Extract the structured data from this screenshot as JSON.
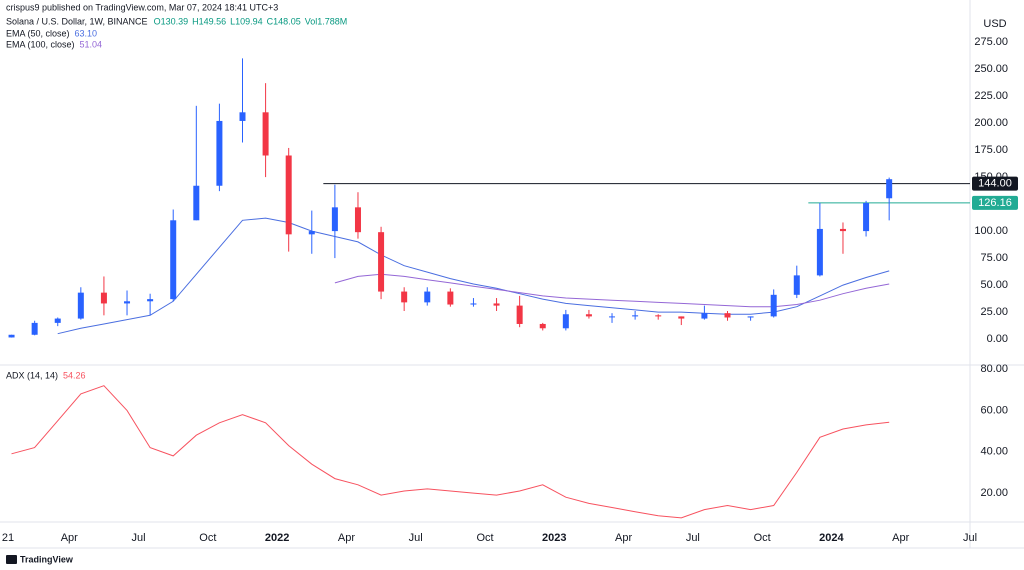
{
  "header": {
    "publisher": "crispus9 published on TradingView.com, Mar 07, 2024 18:41 UTC+3",
    "brand": "TradingView"
  },
  "chart_data": [
    {
      "type": "candlestick",
      "symbol": "Solana / U.S. Dollar, 1W, BINANCE",
      "ohlc_labels": [
        "O130.39",
        "H149.56",
        "L109.94",
        "C148.05",
        "Vol1.788M"
      ],
      "axis_title": "USD",
      "x": [
        "2021-01",
        "2021-02",
        "2021-03",
        "2021-04",
        "2021-05",
        "2021-06",
        "2021-07",
        "2021-08",
        "2021-09",
        "2021-10",
        "2021-11",
        "2021-12",
        "2022-01",
        "2022-02",
        "2022-03",
        "2022-04",
        "2022-05",
        "2022-06",
        "2022-07",
        "2022-08",
        "2022-09",
        "2022-10",
        "2022-11",
        "2022-12",
        "2023-01",
        "2023-02",
        "2023-03",
        "2023-04",
        "2023-05",
        "2023-06",
        "2023-07",
        "2023-08",
        "2023-09",
        "2023-10",
        "2023-11",
        "2023-12",
        "2024-01",
        "2024-02",
        "2024-03"
      ],
      "open": [
        1.5,
        4,
        15,
        19,
        43,
        33,
        35,
        37,
        110,
        142,
        202,
        210,
        170,
        97,
        100,
        122,
        99,
        44,
        34,
        44,
        32,
        33,
        31,
        14,
        10,
        23,
        21,
        21,
        22,
        21,
        19,
        24,
        20,
        21,
        41,
        59,
        102,
        100,
        130.39
      ],
      "high": [
        4,
        17,
        20,
        48,
        58,
        45,
        42,
        120,
        216,
        218,
        260,
        237,
        177,
        119,
        143,
        136,
        104,
        48,
        48,
        47,
        38,
        38,
        40,
        15,
        27,
        27,
        24,
        26,
        23,
        21,
        31,
        26,
        21,
        46,
        68,
        126,
        108,
        128,
        149.56
      ],
      "low": [
        1.4,
        3.5,
        12,
        18,
        22,
        22,
        22,
        35,
        110,
        137,
        182,
        150,
        81,
        79,
        75,
        93,
        37,
        26,
        31,
        30,
        30,
        26,
        11,
        8,
        8,
        19,
        15,
        18,
        18,
        13,
        18,
        17,
        17,
        20,
        38,
        58,
        79,
        95,
        109.94
      ],
      "close": [
        4,
        15,
        19,
        43,
        33,
        35,
        37,
        110,
        142,
        202,
        210,
        170,
        97,
        100,
        122,
        99,
        44,
        34,
        44,
        32,
        33,
        31,
        14,
        10,
        23,
        21,
        21,
        22,
        21,
        19,
        24,
        20,
        21,
        41,
        59,
        102,
        100,
        126,
        148.05
      ],
      "up_color": "#2962ff",
      "down_color": "#f23645",
      "series": [
        {
          "name": "EMA (50, close)",
          "last_label": "63.10",
          "color": "#4a6ee0",
          "values": [
            null,
            null,
            5,
            10,
            14,
            18,
            22,
            35,
            60,
            85,
            110,
            112,
            108,
            100,
            95,
            90,
            78,
            68,
            62,
            56,
            51,
            47,
            42,
            37,
            33,
            31,
            29,
            27,
            25,
            25,
            24,
            23,
            23,
            25,
            30,
            40,
            50,
            57,
            63.1
          ]
        },
        {
          "name": "EMA (100, close)",
          "last_label": "51.04",
          "color": "#9467d6",
          "values": [
            null,
            null,
            null,
            null,
            null,
            null,
            null,
            null,
            null,
            null,
            null,
            null,
            null,
            null,
            52,
            58,
            60,
            58,
            55,
            52,
            49,
            46,
            43,
            40,
            38,
            37,
            36,
            35,
            34,
            33,
            32,
            31,
            30,
            30,
            32,
            36,
            42,
            47,
            51.04
          ]
        }
      ],
      "levels": [
        {
          "value": 144,
          "label": "144.00",
          "from": "2022-03",
          "color": "#131722"
        },
        {
          "value": 126.16,
          "label": "126.16",
          "from": "2023-12",
          "color": "#22ab94"
        }
      ],
      "xlim": [
        "2021-01",
        "2024-07"
      ],
      "ylim": [
        -24,
        314
      ],
      "yticks": [
        {
          "value": 0,
          "label": "0.00"
        },
        {
          "value": 25,
          "label": "25.00"
        },
        {
          "value": 50,
          "label": "50.00"
        },
        {
          "value": 75,
          "label": "75.00"
        },
        {
          "value": 100,
          "label": "100.00"
        },
        {
          "value": 125,
          "label": "125.00"
        },
        {
          "value": 150,
          "label": "150.00"
        },
        {
          "value": 175,
          "label": "175.00"
        },
        {
          "value": 200,
          "label": "200.00"
        },
        {
          "value": 225,
          "label": "225.00"
        },
        {
          "value": 250,
          "label": "250.00"
        },
        {
          "value": 275,
          "label": "275.00"
        }
      ]
    },
    {
      "type": "line",
      "series": [
        {
          "name": "ADX (14, 14)",
          "last_label": "54.26",
          "color": "#f7525f",
          "values": [
            39,
            42,
            55,
            68,
            72,
            60,
            42,
            38,
            48,
            54,
            58,
            54,
            43,
            34,
            27,
            24,
            19,
            21,
            22,
            21,
            20,
            19,
            21,
            24,
            18,
            15,
            13,
            11,
            9,
            8,
            12,
            14,
            12,
            14,
            30,
            47,
            51,
            53,
            54.26
          ]
        }
      ],
      "ylim": [
        6,
        82
      ],
      "yticks": [
        {
          "value": 20,
          "label": "20.00"
        },
        {
          "value": 40,
          "label": "40.00"
        },
        {
          "value": 60,
          "label": "60.00"
        },
        {
          "value": 80,
          "label": "80.00"
        }
      ],
      "xticks": [
        {
          "value": "2021-01",
          "label": "21"
        },
        {
          "value": "2021-04",
          "label": "Apr"
        },
        {
          "value": "2021-07",
          "label": "Jul"
        },
        {
          "value": "2021-10",
          "label": "Oct"
        },
        {
          "value": "2022-01",
          "label": "2022"
        },
        {
          "value": "2022-04",
          "label": "Apr"
        },
        {
          "value": "2022-07",
          "label": "Jul"
        },
        {
          "value": "2022-10",
          "label": "Oct"
        },
        {
          "value": "2023-01",
          "label": "2023"
        },
        {
          "value": "2023-04",
          "label": "Apr"
        },
        {
          "value": "2023-07",
          "label": "Jul"
        },
        {
          "value": "2023-10",
          "label": "Oct"
        },
        {
          "value": "2024-01",
          "label": "2024"
        },
        {
          "value": "2024-04",
          "label": "Apr"
        },
        {
          "value": "2024-07",
          "label": "Jul"
        }
      ]
    }
  ]
}
